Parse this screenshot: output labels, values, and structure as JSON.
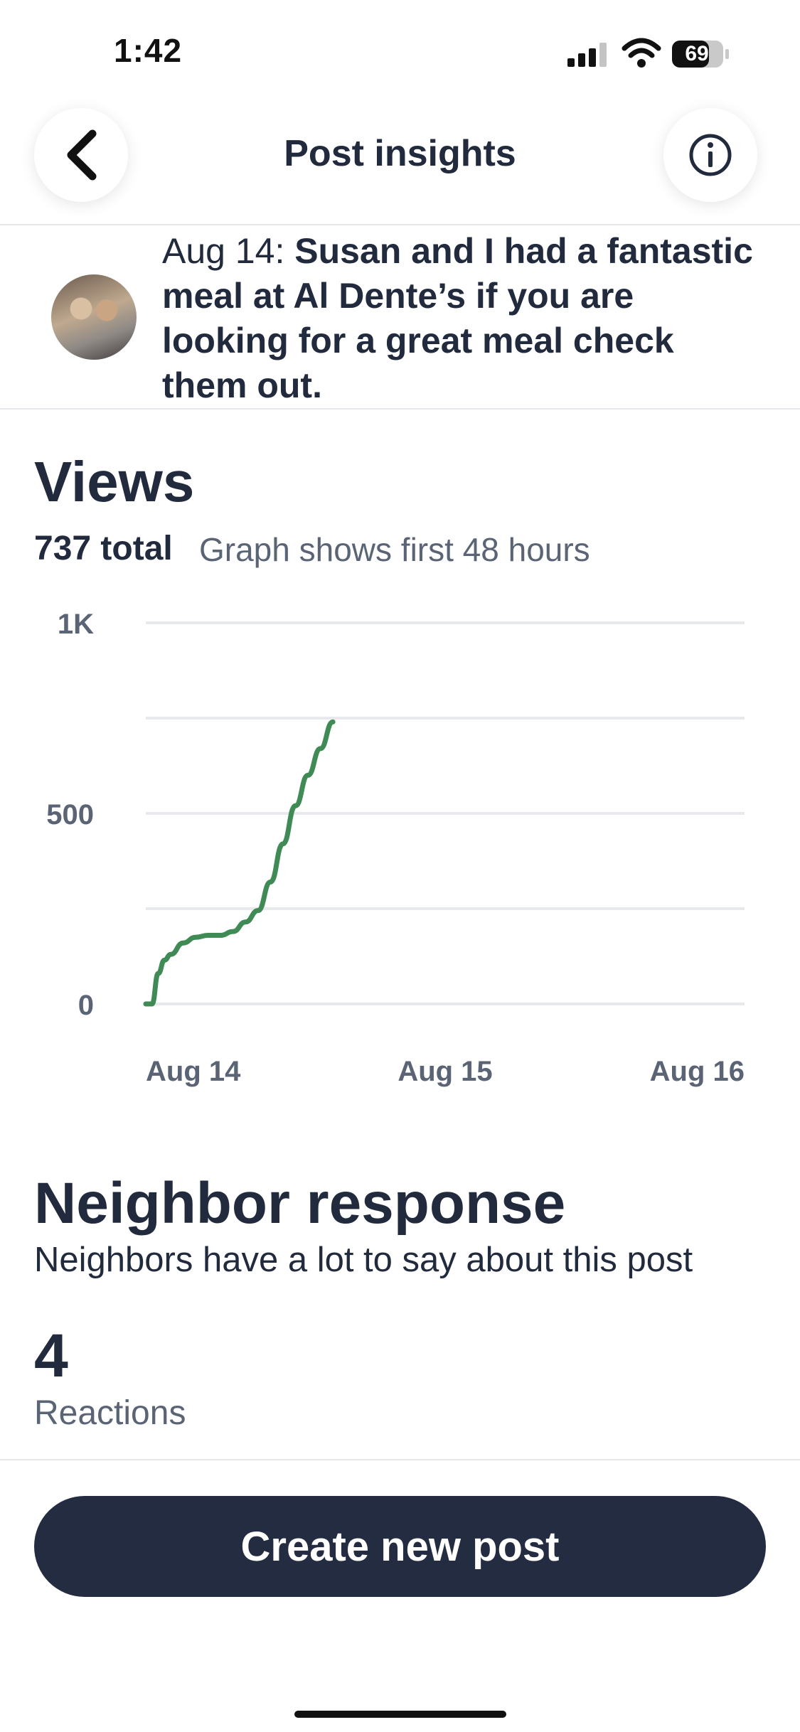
{
  "status_bar": {
    "time": "1:42",
    "battery": "69"
  },
  "header": {
    "title": "Post insights",
    "back_icon": "chevron-left-icon",
    "info_icon": "info-icon"
  },
  "post": {
    "date": "Aug 14:",
    "text": "Susan and I had a fantastic meal at Al Dente’s if you are looking for a great meal check them out."
  },
  "views": {
    "title": "Views",
    "total": "737 total",
    "subtitle": "Graph shows first 48 hours"
  },
  "chart_data": {
    "type": "line",
    "ytick_labels": [
      "0",
      "500",
      "1K"
    ],
    "xtick_labels": [
      "Aug 14",
      "Aug 15",
      "Aug 16"
    ],
    "ylim": [
      0,
      1000
    ],
    "xlim": [
      0,
      48
    ],
    "x_unit": "hours since post",
    "series": [
      {
        "color": "#3f8a55",
        "x": [
          0,
          0.5,
          1,
          1.5,
          2,
          3,
          4,
          5,
          6,
          7,
          8,
          9,
          10,
          11,
          12,
          13,
          14,
          15
        ],
        "y": [
          0,
          0,
          80,
          115,
          130,
          160,
          175,
          180,
          180,
          190,
          215,
          245,
          320,
          420,
          520,
          600,
          670,
          740
        ]
      }
    ],
    "grid": true
  },
  "neighbor_response": {
    "title": "Neighbor response",
    "subtitle": "Neighbors have a lot to say about this post",
    "count": "4",
    "label": "Reactions"
  },
  "cta": {
    "label": "Create new post"
  }
}
